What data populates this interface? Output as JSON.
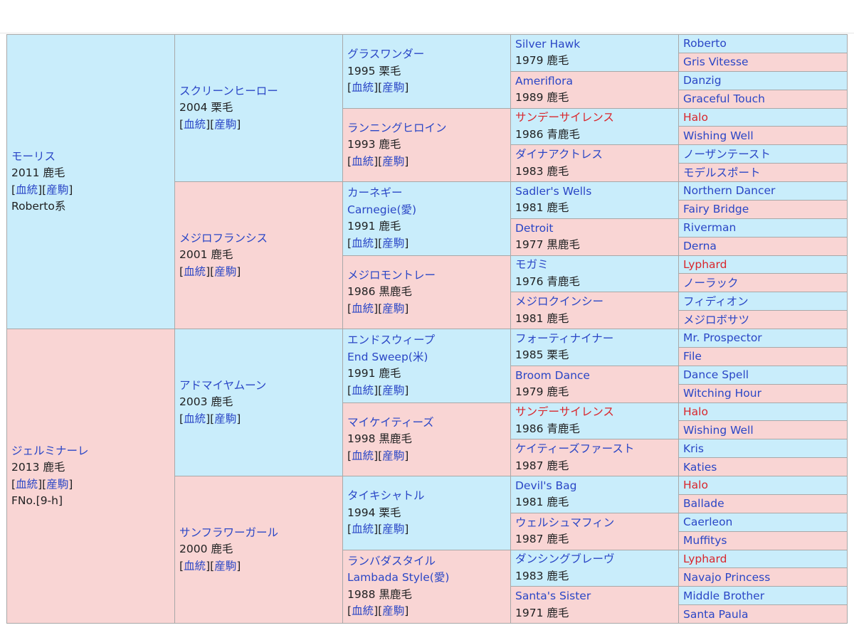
{
  "gen1": [
    {
      "name": "モーリス",
      "info": "2011 鹿毛",
      "link1": "血統",
      "link2": "産駒",
      "extra": "Roberto系"
    },
    {
      "name": "ジェルミナーレ",
      "info": "2013 鹿毛",
      "link1": "血統",
      "link2": "産駒",
      "extra": "FNo.[9-h]"
    }
  ],
  "gen2": [
    {
      "name": "スクリーンヒーロー",
      "info": "2004 栗毛",
      "link1": "血統",
      "link2": "産駒"
    },
    {
      "name": "メジロフランシス",
      "info": "2001 鹿毛",
      "link1": "血統",
      "link2": "産駒"
    },
    {
      "name": "アドマイヤムーン",
      "info": "2003 鹿毛",
      "link1": "血統",
      "link2": "産駒"
    },
    {
      "name": "サンフラワーガール",
      "info": "2000 鹿毛",
      "link1": "血統",
      "link2": "産駒"
    }
  ],
  "gen3": [
    {
      "name": "グラスワンダー",
      "info": "1995 栗毛",
      "link1": "血統",
      "link2": "産駒"
    },
    {
      "name": "ランニングヒロイン",
      "info": "1993 鹿毛",
      "link1": "血統",
      "link2": "産駒"
    },
    {
      "name": "カーネギー",
      "alt": "Carnegie(愛)",
      "info": "1991 鹿毛",
      "link1": "血統",
      "link2": "産駒"
    },
    {
      "name": "メジロモントレー",
      "info": "1986 黒鹿毛",
      "link1": "血統",
      "link2": "産駒"
    },
    {
      "name": "エンドスウィープ",
      "alt": "End Sweep(米)",
      "info": "1991 鹿毛",
      "link1": "血統",
      "link2": "産駒"
    },
    {
      "name": "マイケイティーズ",
      "info": "1998 黒鹿毛",
      "link1": "血統",
      "link2": "産駒"
    },
    {
      "name": "タイキシャトル",
      "info": "1994 栗毛",
      "link1": "血統",
      "link2": "産駒"
    },
    {
      "name": "ランバダスタイル",
      "alt": "Lambada Style(愛)",
      "info": "1988 黒鹿毛",
      "link1": "血統",
      "link2": "産駒"
    }
  ],
  "gen4": [
    {
      "name": "Silver Hawk",
      "info": "1979 鹿毛"
    },
    {
      "name": "Ameriflora",
      "info": "1989 鹿毛"
    },
    {
      "name": "サンデーサイレンス",
      "info": "1986 青鹿毛"
    },
    {
      "name": "ダイナアクトレス",
      "info": "1983 鹿毛"
    },
    {
      "name": "Sadler's Wells",
      "info": "1981 鹿毛"
    },
    {
      "name": "Detroit",
      "info": "1977 黒鹿毛"
    },
    {
      "name": "モガミ",
      "info": "1976 青鹿毛"
    },
    {
      "name": "メジロクインシー",
      "info": "1981 鹿毛"
    },
    {
      "name": "フォーティナイナー",
      "info": "1985 栗毛"
    },
    {
      "name": "Broom Dance",
      "info": "1979 鹿毛"
    },
    {
      "name": "サンデーサイレンス",
      "info": "1986 青鹿毛"
    },
    {
      "name": "ケイティーズファースト",
      "info": "1987 鹿毛"
    },
    {
      "name": "Devil's Bag",
      "info": "1981 鹿毛"
    },
    {
      "name": "ウェルシュマフィン",
      "info": "1987 鹿毛"
    },
    {
      "name": "ダンシングブレーヴ",
      "info": "1983 鹿毛"
    },
    {
      "name": "Santa's Sister",
      "info": "1971 鹿毛"
    }
  ],
  "gen5": [
    {
      "name": "Roberto"
    },
    {
      "name": "Gris Vitesse"
    },
    {
      "name": "Danzig"
    },
    {
      "name": "Graceful Touch"
    },
    {
      "name": "Halo"
    },
    {
      "name": "Wishing Well"
    },
    {
      "name": "ノーザンテースト"
    },
    {
      "name": "モデルスポート"
    },
    {
      "name": "Northern Dancer"
    },
    {
      "name": "Fairy Bridge"
    },
    {
      "name": "Riverman"
    },
    {
      "name": "Derna"
    },
    {
      "name": "Lyphard"
    },
    {
      "name": "ノーラック"
    },
    {
      "name": "フィディオン"
    },
    {
      "name": "メジロボサツ"
    },
    {
      "name": "Mr. Prospector"
    },
    {
      "name": "File"
    },
    {
      "name": "Dance Spell"
    },
    {
      "name": "Witching Hour"
    },
    {
      "name": "Halo"
    },
    {
      "name": "Wishing Well"
    },
    {
      "name": "Kris"
    },
    {
      "name": "Katies"
    },
    {
      "name": "Halo"
    },
    {
      "name": "Ballade"
    },
    {
      "name": "Caerleon"
    },
    {
      "name": "Muffitys"
    },
    {
      "name": "Lyphard"
    },
    {
      "name": "Navajo Princess"
    },
    {
      "name": "Middle Brother"
    },
    {
      "name": "Santa Paula"
    }
  ],
  "colors": {
    "male_bg": "#c9edfb",
    "female_bg": "#f9d5d4",
    "link": "#2a46c6",
    "inbreed": "#d9262c",
    "border": "#a8a8a8"
  },
  "highlight_red": [
    "サンデーサイレンス",
    "Halo",
    "Lyphard"
  ]
}
